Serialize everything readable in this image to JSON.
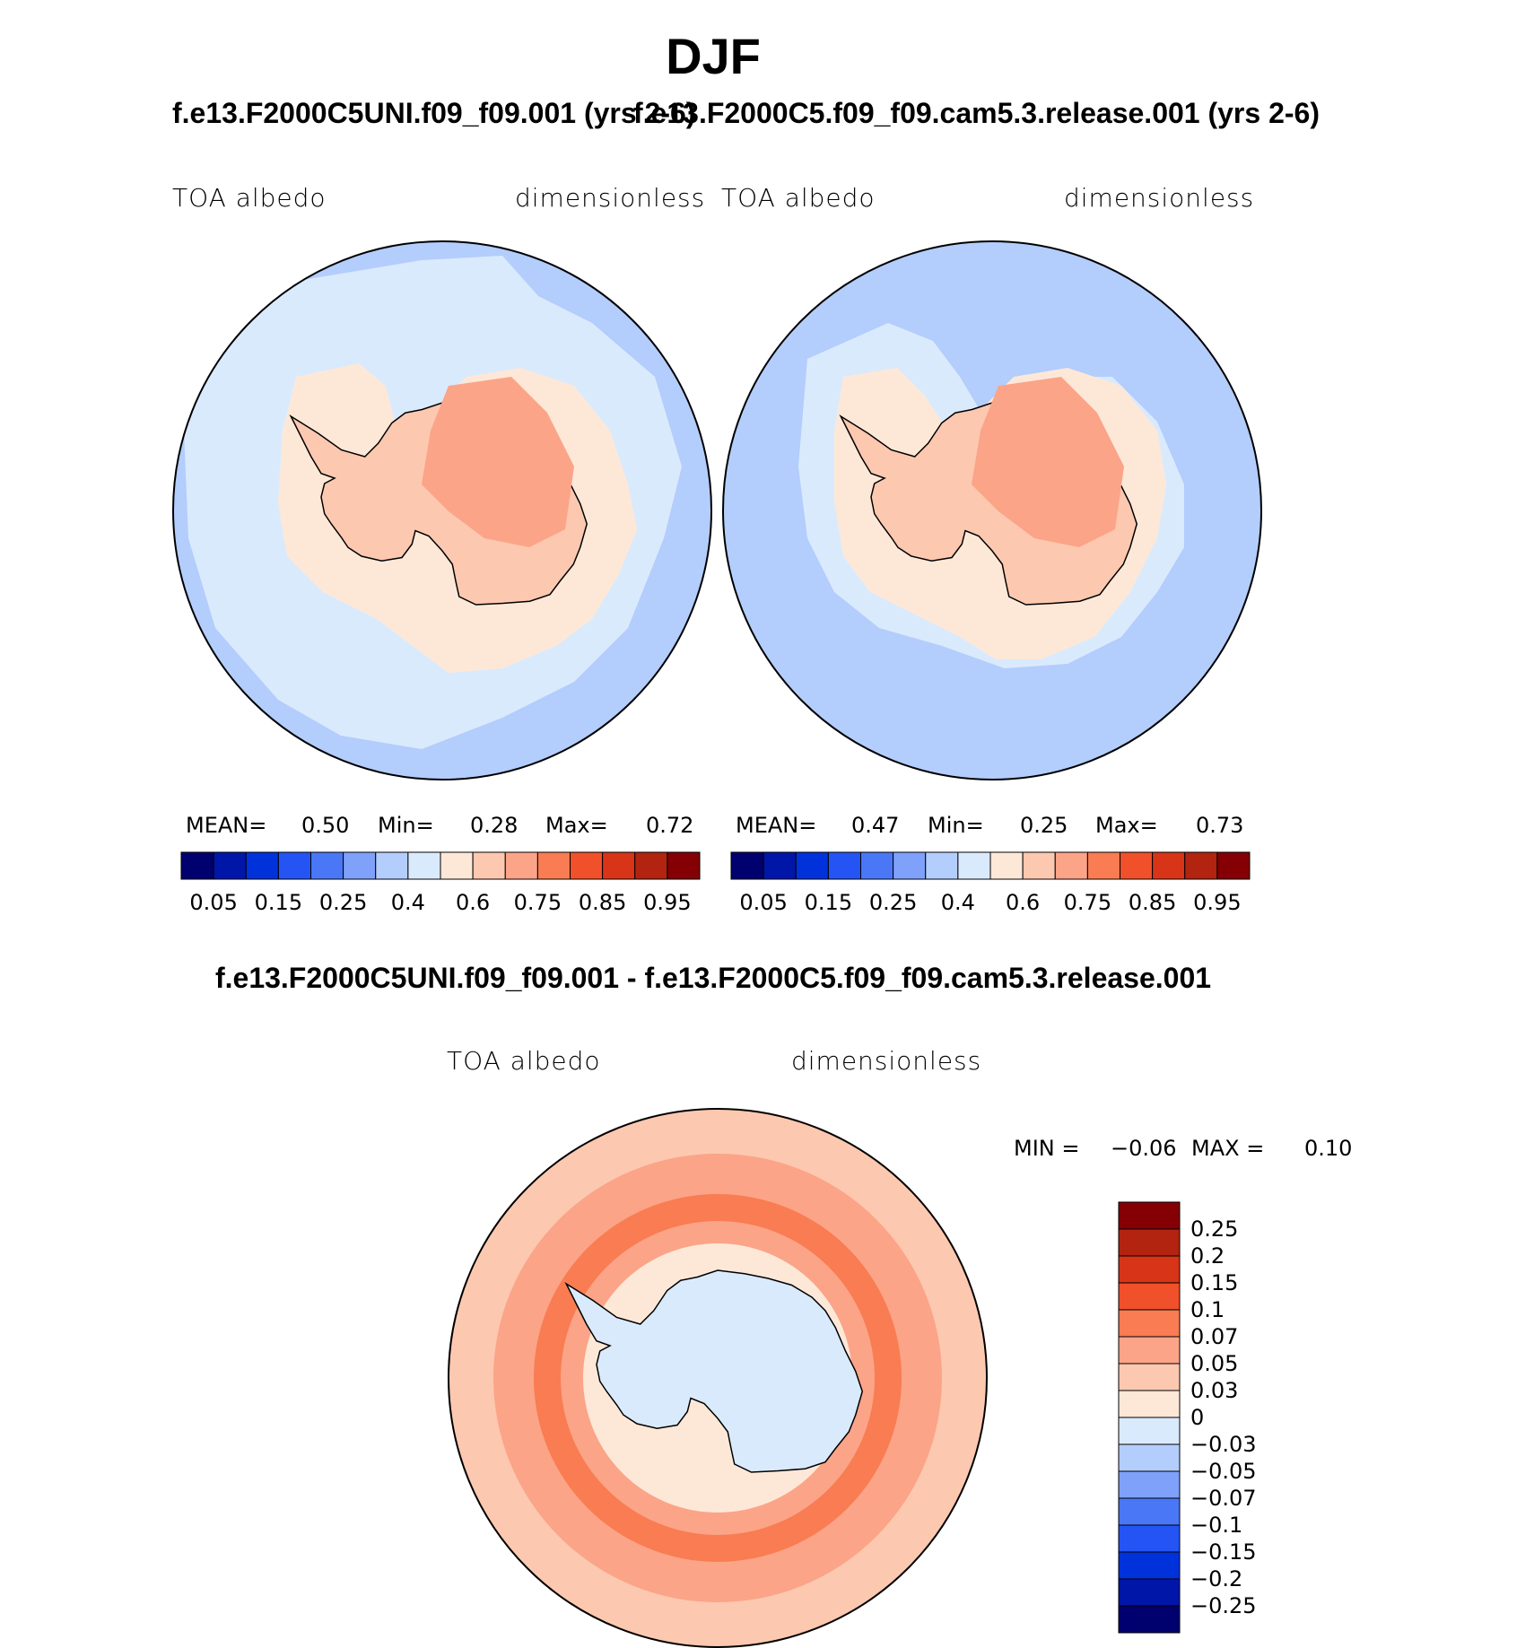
{
  "figure": {
    "title": "DJF",
    "left_panel_title": "f.e13.F2000C5UNI.f09_f09.001 (yrs 2-6)",
    "right_panel_title": "f.e13.F2000C5.f09_f09.cam5.3.release.001 (yrs 2-6)",
    "diff_panel_title": "f.e13.F2000C5UNI.f09_f09.001 - f.e13.F2000C5.f09_f09.cam5.3.release.001"
  },
  "panels": {
    "left": {
      "variable": "TOA albedo",
      "units": "dimensionless",
      "mean_label": "MEAN=",
      "mean": "0.50",
      "min_label": "Min=",
      "min": "0.28",
      "max_label": "Max=",
      "max": "0.72"
    },
    "right": {
      "variable": "TOA albedo",
      "units": "dimensionless",
      "mean_label": "MEAN=",
      "mean": "0.47",
      "min_label": "Min=",
      "min": "0.25",
      "max_label": "Max=",
      "max": "0.73"
    },
    "diff": {
      "variable": "TOA albedo",
      "units": "dimensionless",
      "min_label": "MIN =",
      "min": "−0.06",
      "max_label": "MAX =",
      "max": "0.10"
    }
  },
  "chart_data": [
    {
      "type": "map",
      "projection": "south polar stereographic",
      "variable": "TOA albedo",
      "units": "dimensionless",
      "colorbar": {
        "orientation": "horizontal",
        "tick_labels": [
          "0.05",
          "0.15",
          "0.25",
          "0.4",
          "0.6",
          "0.75",
          "0.85",
          "0.95"
        ],
        "colors": [
          "#00006e",
          "#0016a8",
          "#0032dc",
          "#2455f4",
          "#4a77f6",
          "#7fa1fa",
          "#b3cdfc",
          "#daeafd",
          "#fde8d8",
          "#fcc8b0",
          "#fba488",
          "#f97c52",
          "#f0502a",
          "#d73418",
          "#b22410",
          "#840004"
        ]
      }
    },
    {
      "type": "map",
      "projection": "south polar stereographic",
      "variable": "TOA albedo",
      "units": "dimensionless",
      "colorbar": {
        "orientation": "horizontal",
        "tick_labels": [
          "0.05",
          "0.15",
          "0.25",
          "0.4",
          "0.6",
          "0.75",
          "0.85",
          "0.95"
        ],
        "colors": [
          "#00006e",
          "#0016a8",
          "#0032dc",
          "#2455f4",
          "#4a77f6",
          "#7fa1fa",
          "#b3cdfc",
          "#daeafd",
          "#fde8d8",
          "#fcc8b0",
          "#fba488",
          "#f97c52",
          "#f0502a",
          "#d73418",
          "#b22410",
          "#840004"
        ]
      }
    },
    {
      "type": "map",
      "projection": "south polar stereographic",
      "variable": "TOA albedo difference",
      "units": "dimensionless",
      "colorbar": {
        "orientation": "vertical",
        "tick_labels": [
          "0.25",
          "0.2",
          "0.15",
          "0.1",
          "0.07",
          "0.05",
          "0.03",
          "0",
          "−0.03",
          "−0.05",
          "−0.07",
          "−0.1",
          "−0.15",
          "−0.2",
          "−0.25"
        ],
        "colors": [
          "#840004",
          "#b22410",
          "#d73418",
          "#f0502a",
          "#f97c52",
          "#fba488",
          "#fcc8b0",
          "#fde8d8",
          "#daeafd",
          "#b3cdfc",
          "#7fa1fa",
          "#4a77f6",
          "#2455f4",
          "#0032dc",
          "#0016a8",
          "#00006e"
        ]
      }
    }
  ],
  "colors": {
    "ocean_left": "#daeafd",
    "ocean_left_outer": "#b3cdfc",
    "ocean_right": "#b3cdfc",
    "ice_shelf": "#fde8d8",
    "land_low": "#fcc8b0",
    "land_high": "#fba488",
    "diff_ring_1": "#fde8d8",
    "diff_ring_2": "#fcc8b0",
    "diff_ring_3": "#fba488",
    "diff_ring_4": "#f97c52",
    "diff_center": "#daeafd"
  }
}
